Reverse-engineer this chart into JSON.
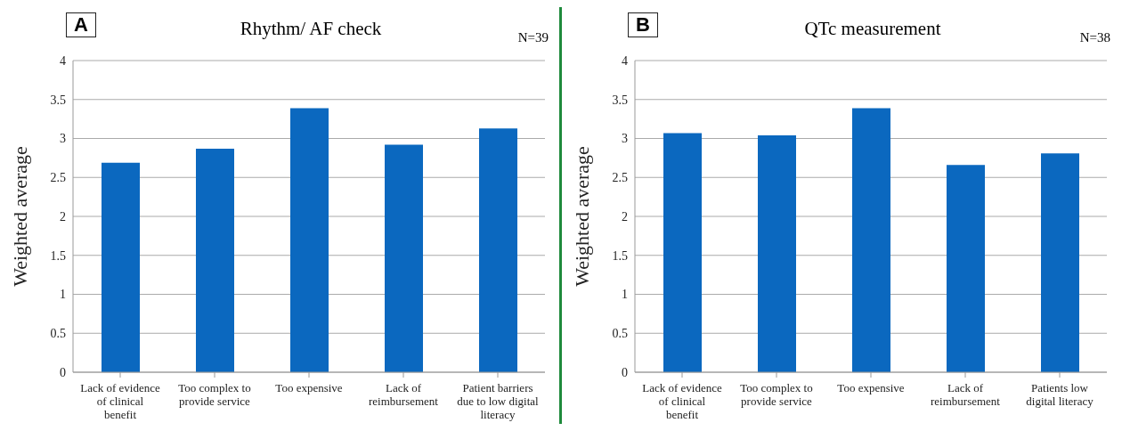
{
  "chart_data": [
    {
      "type": "bar",
      "title": "Rhythm/ AF check",
      "ylabel": "Weighted average",
      "annotations": [
        "A",
        "N=39"
      ],
      "categories": [
        "Lack of evidence of clinical benefit",
        "Too complex to provide service",
        "Too expensive",
        "Lack of reimbursement",
        "Patient barriers due to low digital literacy"
      ],
      "values": [
        2.69,
        2.87,
        3.39,
        2.92,
        3.13
      ],
      "color": "#0b68bf",
      "ylim": [
        0,
        4
      ],
      "yticks": [
        0,
        0.5,
        1,
        1.5,
        2,
        2.5,
        3,
        3.5,
        4
      ],
      "grid": "y"
    },
    {
      "type": "bar",
      "title": "QTc measurement",
      "ylabel": "Weighted average",
      "annotations": [
        "B",
        "N=38"
      ],
      "categories": [
        "Lack of evidence of clinical benefit",
        "Too complex to provide service",
        "Too expensive",
        "Lack of reimbursement",
        "Patients low digital literacy"
      ],
      "values": [
        3.07,
        3.04,
        3.39,
        2.66,
        2.81
      ],
      "color": "#0b68bf",
      "ylim": [
        0,
        4
      ],
      "yticks": [
        0,
        0.5,
        1,
        1.5,
        2,
        2.5,
        3,
        3.5,
        4
      ],
      "grid": "y"
    }
  ]
}
